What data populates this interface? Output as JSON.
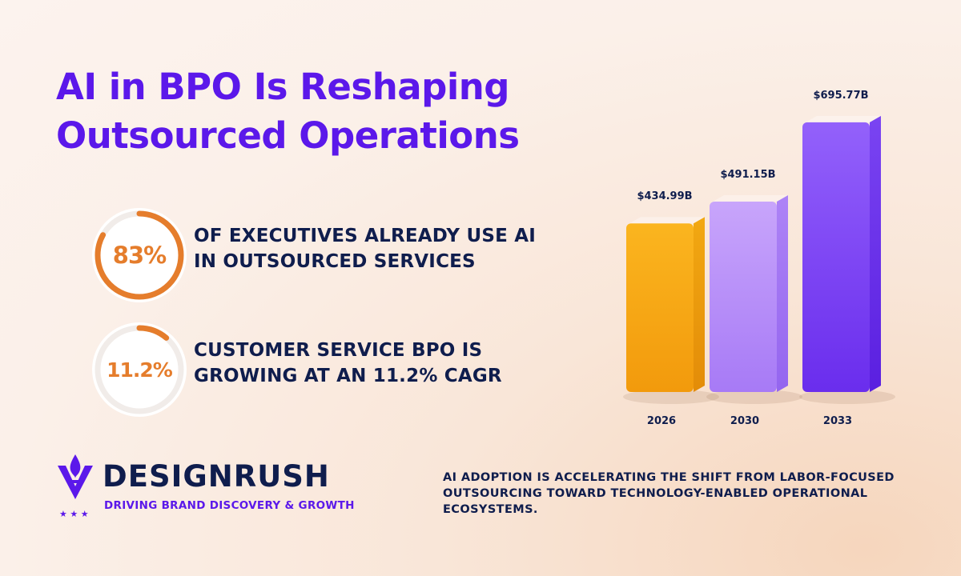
{
  "title": {
    "line1": "AI in BPO Is Reshaping",
    "line2": "Outsourced Operations"
  },
  "stats": [
    {
      "value": "83%",
      "fraction": 0.83,
      "line1": "OF EXECUTIVES ALREADY USE AI",
      "line2": "IN OUTSOURCED SERVICES"
    },
    {
      "value": "11.2%",
      "fraction": 0.112,
      "line1": "CUSTOMER SERVICE BPO IS",
      "line2": "GROWING AT AN 11.2% CAGR"
    }
  ],
  "chart_data": {
    "type": "bar",
    "categories": [
      "2026",
      "2030",
      "2033"
    ],
    "values": [
      434.99,
      491.15,
      695.77
    ],
    "value_labels": [
      "$434.99B",
      "$491.15B",
      "$695.77B"
    ],
    "colors": [
      "#f5a20f",
      "#b48cf8",
      "#7a3ef2"
    ],
    "grid": false,
    "title": "",
    "xlabel": "",
    "ylabel": ""
  },
  "logo": {
    "name": "DESIGNRUSH",
    "tagline": "DRIVING BRAND DISCOVERY & GROWTH"
  },
  "footnote": {
    "line1": "AI ADOPTION IS ACCELERATING THE SHIFT FROM LABOR-FOCUSED",
    "line2": "OUTSOURCING TOWARD TECHNOLOGY-ENABLED OPERATIONAL",
    "line3": "ECOSYSTEMS."
  },
  "colors": {
    "accent": "#5b18ea",
    "navy": "#0f1d4d",
    "orange": "#e57d2c"
  }
}
